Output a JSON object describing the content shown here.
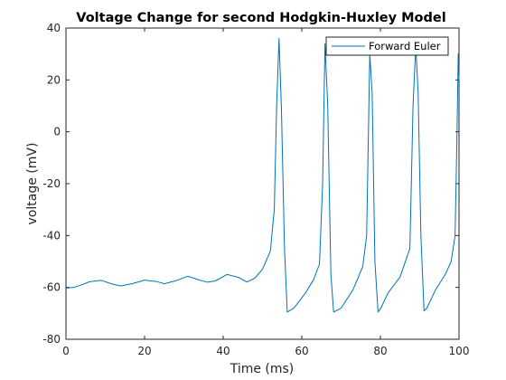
{
  "chart_data": {
    "type": "line",
    "title": "Voltage  Change for second Hodgkin-Huxley Model",
    "xlabel": "Time (ms)",
    "ylabel": "voltage (mV)",
    "xlim": [
      0,
      100
    ],
    "ylim": [
      -80,
      40
    ],
    "xticks": [
      "0",
      "20",
      "40",
      "60",
      "80",
      "100"
    ],
    "yticks": [
      "-80",
      "-60",
      "-40",
      "-20",
      "0",
      "20",
      "40"
    ],
    "grid": false,
    "legend_position": "top-right",
    "colors": {
      "series": "#0072BD",
      "axis": "#262626"
    },
    "series": [
      {
        "name": "Forward Euler",
        "x": [
          0,
          2,
          4,
          6,
          9,
          12,
          14,
          17,
          20,
          23,
          25,
          28,
          31,
          34,
          36,
          38,
          41,
          44,
          46,
          48,
          50,
          52,
          53,
          53.6,
          54.2,
          54.8,
          55.6,
          56.3,
          58,
          61,
          63,
          64.5,
          65.3,
          65.9,
          66.6,
          67.4,
          68.1,
          70,
          73,
          75.5,
          76.5,
          77.3,
          77.9,
          78.6,
          79.4,
          80.1,
          82,
          85,
          87.5,
          88.3,
          89,
          89.6,
          90.3,
          91.1,
          91.8,
          94,
          96.5,
          98,
          99,
          99.5,
          99.8,
          100
        ],
        "y": [
          -60.3,
          -60,
          -59,
          -57.8,
          -57.3,
          -58.8,
          -59.4,
          -58.5,
          -57.2,
          -57.7,
          -58.6,
          -57.4,
          -55.7,
          -57.2,
          -58,
          -57.5,
          -55,
          -56.2,
          -57.9,
          -56.5,
          -53,
          -46,
          -30,
          10,
          36,
          10,
          -45,
          -69.5,
          -68,
          -62,
          -57,
          -51,
          -20,
          34,
          10,
          -55,
          -69.5,
          -68,
          -61,
          -52,
          -40,
          30,
          15,
          -50,
          -69.5,
          -68,
          -62,
          -56,
          -45,
          10,
          33,
          15,
          -40,
          -69,
          -68,
          -61,
          -55,
          -50,
          -40,
          0,
          30,
          20
        ]
      }
    ]
  }
}
